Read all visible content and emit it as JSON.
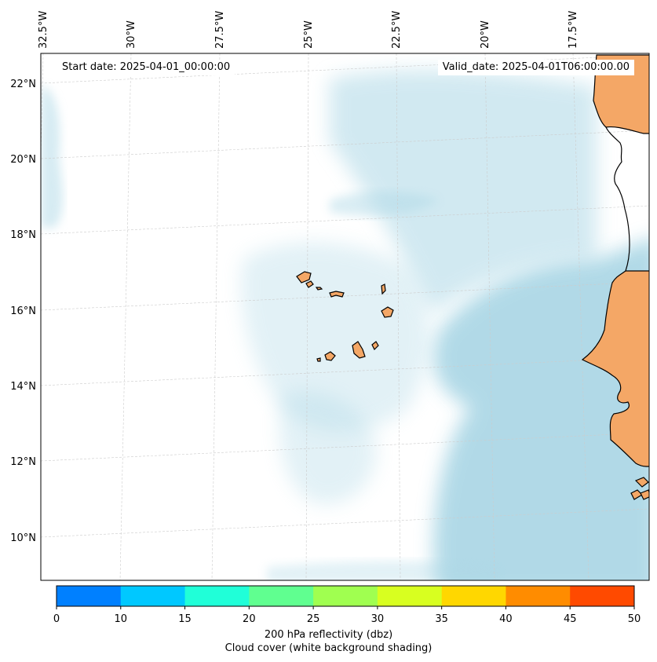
{
  "header": {
    "start_date": "Start date: 2025-04-01_00:00:00",
    "valid_date": "Valid_date: 2025-04-01T06:00:00.00"
  },
  "map": {
    "lon_labels": [
      "32.5°W",
      "30°W",
      "27.5°W",
      "25°W",
      "22.5°W",
      "20°W",
      "17.5°W"
    ],
    "lat_labels": [
      "22°N",
      "20°N",
      "18°N",
      "16°N",
      "14°N",
      "12°N",
      "10°N"
    ],
    "land_color": "#f4a766",
    "cloud_color": "#add8e6",
    "grid_color": "#cccccc",
    "coastline_color": "#000000"
  },
  "colorbar": {
    "ticks": [
      "0",
      "10",
      "15",
      "20",
      "25",
      "30",
      "35",
      "40",
      "45",
      "50"
    ],
    "colors": [
      "#0080ff",
      "#00c8ff",
      "#20ffd8",
      "#60ff90",
      "#a0ff50",
      "#d8ff20",
      "#ffd700",
      "#ff8c00",
      "#ff4a00"
    ],
    "label": "200 hPa reflectivity (dbz)",
    "sublabel": "Cloud cover (white background shading)"
  }
}
